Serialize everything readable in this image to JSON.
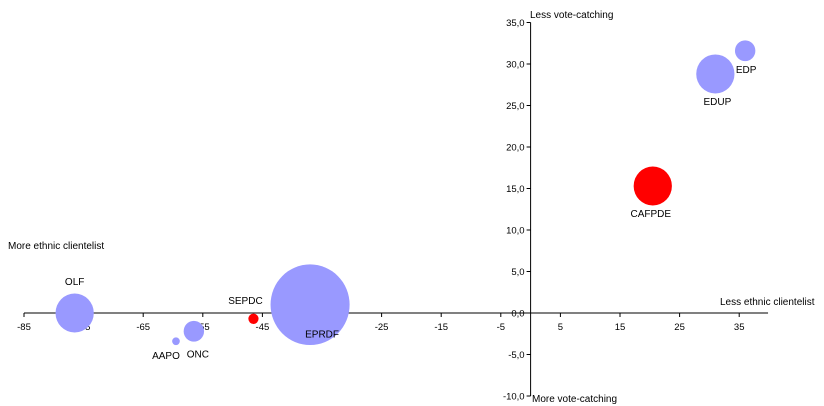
{
  "chart_data": {
    "type": "bubble",
    "x_ticks": [
      "-85",
      "-75",
      "-65",
      "-55",
      "-45",
      "-35",
      "-25",
      "-15",
      "-5",
      "5",
      "15",
      "25",
      "35"
    ],
    "x_tick_values": [
      -85,
      -75,
      -65,
      -55,
      -45,
      -35,
      -25,
      -15,
      -5,
      5,
      15,
      25,
      35
    ],
    "y_ticks": [
      "-10,0",
      "-5,0",
      "0,0",
      "5,0",
      "10,0",
      "15,0",
      "20,0",
      "25,0",
      "30,0",
      "35,0"
    ],
    "y_tick_values": [
      -10,
      -5,
      0,
      5,
      10,
      15,
      20,
      25,
      30,
      35
    ],
    "xlim": [
      -85,
      39
    ],
    "ylim": [
      -10,
      35
    ],
    "quadrant_labels": {
      "top": "Less vote-catching",
      "bottom": "More vote-catching",
      "left": "More ethnic clientelist",
      "right": "Less ethnic clientelist"
    },
    "points": [
      {
        "name": "OLF",
        "x": -76.5,
        "y": 0.0,
        "size": 7.5,
        "color": "#9999ff"
      },
      {
        "name": "AAPO",
        "x": -59.5,
        "y": -3.4,
        "size": 1.5,
        "color": "#9999ff"
      },
      {
        "name": "ONC",
        "x": -56.5,
        "y": -2.2,
        "size": 4.0,
        "color": "#9999ff"
      },
      {
        "name": "SEPDC",
        "x": -46.5,
        "y": -0.7,
        "size": 2.0,
        "color": "#ff0000"
      },
      {
        "name": "EPRDF",
        "x": -37.0,
        "y": 1.0,
        "size": 15.5,
        "color": "#9999ff"
      },
      {
        "name": "CAFPDE",
        "x": 20.5,
        "y": 15.3,
        "size": 7.5,
        "color": "#ff0000"
      },
      {
        "name": "EDUP",
        "x": 31.0,
        "y": 28.8,
        "size": 7.5,
        "color": "#9999ff"
      },
      {
        "name": "EDP",
        "x": 36.0,
        "y": 31.6,
        "size": 4.0,
        "color": "#9999ff"
      }
    ]
  }
}
